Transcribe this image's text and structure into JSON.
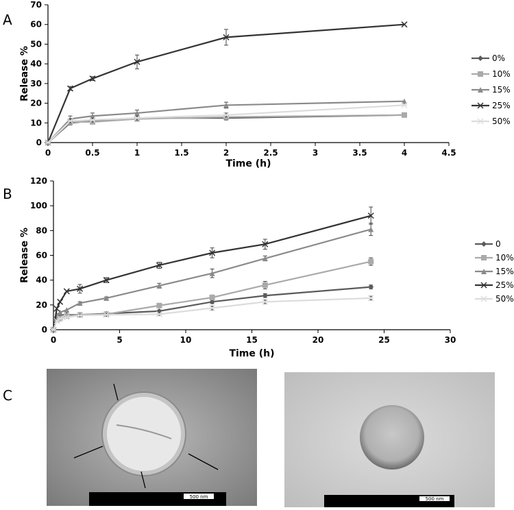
{
  "panels": [
    "A",
    "B",
    "C"
  ],
  "chart_data": [
    {
      "type": "line",
      "x_label": "Time (h)",
      "y_label": "Release %",
      "x": [
        0,
        0.25,
        0.5,
        1,
        2,
        4
      ],
      "xlim": [
        0,
        4.5
      ],
      "xticks": [
        0,
        0.5,
        1,
        1.5,
        2,
        2.5,
        3,
        3.5,
        4,
        4.5
      ],
      "ylim": [
        0,
        70
      ],
      "yticks": [
        0,
        10,
        20,
        30,
        40,
        50,
        60,
        70
      ],
      "grid": false,
      "legend": "right",
      "series": [
        {
          "name": "0%",
          "color": "#5a5a5a",
          "marker": "diamond",
          "values": [
            0,
            10,
            11,
            12.5,
            12.5,
            14
          ],
          "errors": [
            null,
            1,
            1,
            1,
            1,
            null
          ]
        },
        {
          "name": "10%",
          "color": "#aaaaaa",
          "marker": "square",
          "values": [
            0,
            10.5,
            10.5,
            12,
            13,
            14
          ],
          "errors": [
            null,
            1,
            1,
            1,
            1,
            null
          ]
        },
        {
          "name": "15%",
          "color": "#8a8a8a",
          "marker": "triangle",
          "values": [
            0,
            12,
            13.5,
            15,
            19,
            21
          ],
          "errors": [
            null,
            1.5,
            1.5,
            1.5,
            1.5,
            null
          ]
        },
        {
          "name": "25%",
          "color": "#333333",
          "marker": "x",
          "values": [
            0,
            27.5,
            32.5,
            41,
            53.5,
            60
          ],
          "errors": [
            null,
            1,
            1,
            3.5,
            4,
            null
          ]
        },
        {
          "name": "50%",
          "color": "#dcdcdc",
          "marker": "asterisk",
          "values": [
            0,
            11,
            11.5,
            12.5,
            14,
            19
          ],
          "errors": [
            null,
            1,
            1,
            1,
            1,
            null
          ]
        }
      ]
    },
    {
      "type": "line",
      "x_label": "Time (h)",
      "y_label": "Release %",
      "x": [
        0,
        0.25,
        0.5,
        1,
        2,
        4,
        8,
        12,
        16,
        24
      ],
      "xlim": [
        0,
        30
      ],
      "xticks": [
        0,
        5,
        10,
        15,
        20,
        25,
        30
      ],
      "ylim": [
        0,
        120
      ],
      "yticks": [
        0,
        20,
        40,
        60,
        80,
        100,
        120
      ],
      "grid": false,
      "legend": "right",
      "series": [
        {
          "name": "0",
          "color": "#5a5a5a",
          "marker": "diamond",
          "values": [
            0,
            10,
            12,
            12,
            12,
            13,
            15,
            22.5,
            27.5,
            34.5
          ],
          "errors": [
            null,
            null,
            null,
            null,
            1,
            1,
            1,
            1.5,
            1.5,
            1.5
          ]
        },
        {
          "name": "10%",
          "color": "#aaaaaa",
          "marker": "square",
          "values": [
            0,
            8,
            9,
            11,
            12,
            12.5,
            19.5,
            26,
            36,
            55
          ],
          "errors": [
            null,
            null,
            null,
            null,
            1,
            1,
            1.5,
            2,
            3,
            3
          ]
        },
        {
          "name": "15%",
          "color": "#8a8a8a",
          "marker": "triangle",
          "values": [
            0,
            12,
            14,
            16,
            21.5,
            25.5,
            35.5,
            45.5,
            57.5,
            81
          ],
          "errors": [
            null,
            null,
            null,
            null,
            1,
            1,
            2,
            3.5,
            2,
            5
          ]
        },
        {
          "name": "25%",
          "color": "#333333",
          "marker": "x",
          "values": [
            0,
            17,
            22.5,
            31,
            33,
            40,
            52,
            62,
            69,
            92
          ],
          "errors": [
            null,
            null,
            null,
            null,
            3.5,
            2,
            2.5,
            4,
            4,
            7
          ]
        },
        {
          "name": "50%",
          "color": "#dcdcdc",
          "marker": "asterisk",
          "values": [
            0,
            7,
            9,
            10,
            11.5,
            12,
            12.5,
            17.5,
            22.5,
            25.5
          ],
          "errors": [
            null,
            null,
            null,
            null,
            1,
            1,
            1,
            1.5,
            1.5,
            1.5
          ]
        }
      ]
    }
  ],
  "images": [
    {
      "scale_label": "500 nm"
    },
    {
      "scale_label": "500 nm"
    }
  ]
}
